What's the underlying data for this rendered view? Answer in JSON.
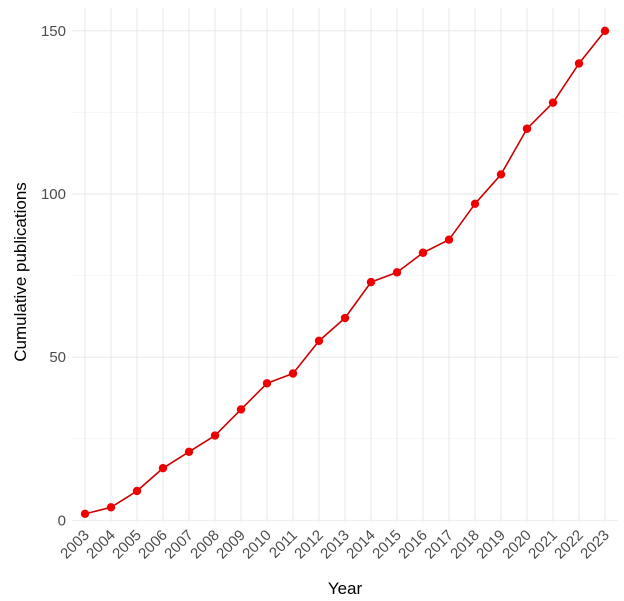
{
  "chart_data": {
    "type": "line",
    "title": "",
    "xlabel": "Year",
    "ylabel": "Cumulative publications",
    "x": [
      "2003",
      "2004",
      "2005",
      "2006",
      "2007",
      "2008",
      "2009",
      "2010",
      "2011",
      "2012",
      "2013",
      "2014",
      "2015",
      "2016",
      "2017",
      "2018",
      "2019",
      "2020",
      "2021",
      "2022",
      "2023"
    ],
    "series": [
      {
        "values": [
          2,
          4,
          9,
          16,
          21,
          26,
          34,
          42,
          45,
          55,
          62,
          73,
          76,
          82,
          86,
          97,
          106,
          120,
          128,
          140,
          150
        ]
      }
    ],
    "yticks": [
      0,
      50,
      100,
      150
    ],
    "ylim": [
      -0.5,
      157
    ],
    "grid": true,
    "legend": "none",
    "colors": {
      "line": "#cc0000",
      "point": "#ee0000"
    }
  }
}
